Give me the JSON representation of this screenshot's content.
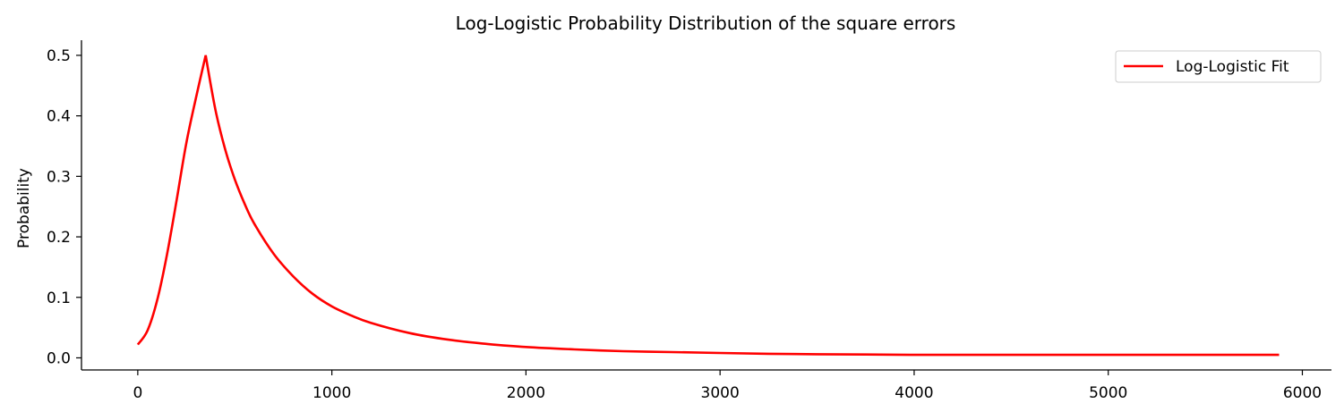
{
  "chart_data": {
    "type": "line",
    "title": "Log-Logistic Probability Distribution of the square errors",
    "xlabel": "",
    "ylabel": "Probability",
    "xlim": [
      -290,
      6150
    ],
    "ylim": [
      -0.02,
      0.525
    ],
    "xticks": [
      0,
      1000,
      2000,
      3000,
      4000,
      5000,
      6000
    ],
    "xtick_labels": [
      "0",
      "1000",
      "2000",
      "3000",
      "4000",
      "5000",
      "6000"
    ],
    "yticks": [
      0.0,
      0.1,
      0.2,
      0.3,
      0.4,
      0.5
    ],
    "ytick_labels": [
      "0.0",
      "0.1",
      "0.2",
      "0.3",
      "0.4",
      "0.5"
    ],
    "grid": false,
    "legend_position": "top-right",
    "series": [
      {
        "name": "Log-Logistic Fit",
        "color": "#ff0000",
        "x": [
          0,
          50,
          100,
          150,
          200,
          250,
          300,
          350,
          400,
          450,
          500,
          550,
          600,
          700,
          800,
          900,
          1000,
          1100,
          1200,
          1400,
          1600,
          1800,
          2000,
          2250,
          2500,
          2750,
          3000,
          3250,
          3500,
          3750,
          4000,
          4500,
          5000,
          5500,
          5880
        ],
        "y": [
          0.022,
          0.045,
          0.095,
          0.17,
          0.26,
          0.355,
          0.43,
          0.5,
          0.41,
          0.345,
          0.295,
          0.255,
          0.222,
          0.172,
          0.135,
          0.106,
          0.085,
          0.07,
          0.058,
          0.041,
          0.03,
          0.023,
          0.018,
          0.014,
          0.011,
          0.0095,
          0.008,
          0.0068,
          0.006,
          0.0055,
          0.005,
          0.005,
          0.005,
          0.005,
          0.005
        ]
      }
    ]
  }
}
